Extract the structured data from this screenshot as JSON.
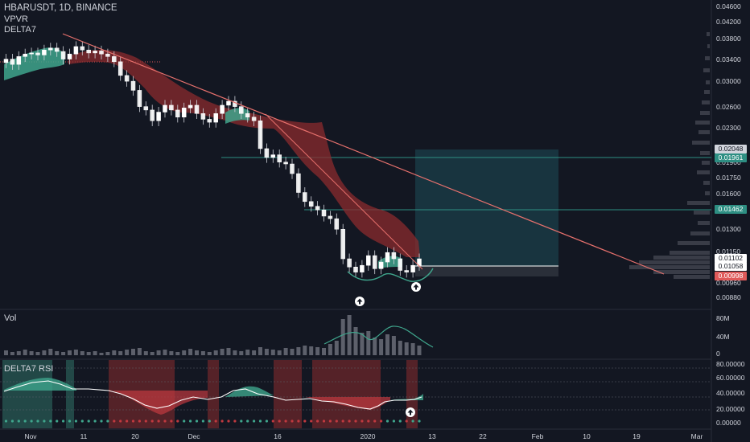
{
  "header": {
    "symbol": "HBARUSDT, 1D, BINANCE",
    "indicator1": "VPVR",
    "indicator2": "DELTA7"
  },
  "panes": {
    "volume_title": "Vol",
    "rsi_title": "DELTA7 RSI"
  },
  "colors": {
    "background": "#131722",
    "up": "#ffffff",
    "down": "#ffffff",
    "cloud_bear": "#8b2b2e",
    "cloud_bull": "#3fa58c",
    "trendline": "#e8716d",
    "level_green": "#2e8f83",
    "level_red": "#e05a5a",
    "rsi_band_red": "#8b2b2e",
    "rsi_line": "#ffffff"
  },
  "price_tags": [
    {
      "label": "0.02048",
      "bg": "#d1d4dc",
      "fg": "#131722",
      "price": 0.02048
    },
    {
      "label": "0.01961",
      "bg": "#2e8f83",
      "fg": "#ffffff",
      "price": 0.01961
    },
    {
      "label": "0.01462",
      "bg": "#2e8f83",
      "fg": "#ffffff",
      "price": 0.01462
    },
    {
      "label": "0.01102",
      "bg": "#ffffff",
      "fg": "#131722",
      "price": 0.01102
    },
    {
      "label": "0.01058",
      "bg": "#ffffff",
      "fg": "#131722",
      "price": 0.01058
    },
    {
      "label": "0.00998",
      "bg": "#e05a5a",
      "fg": "#ffffff",
      "price": 0.00998
    }
  ],
  "chart_data": {
    "type": "candlestick",
    "title": "HBARUSDT, 1D, BINANCE",
    "x_tick_labels": [
      "Nov",
      "11",
      "20",
      "Dec",
      "16",
      "2020",
      "13",
      "22",
      "Feb",
      "10",
      "19",
      "Mar"
    ],
    "y_tick_labels": [
      "0.04600",
      "0.04200",
      "0.03800",
      "0.03400",
      "0.03000",
      "0.02600",
      "0.02300",
      "0.01900",
      "0.01750",
      "0.01600",
      "0.01300",
      "0.01150",
      "0.00960",
      "0.00880"
    ],
    "volume_ticks": [
      "80M",
      "40M",
      "0"
    ],
    "rsi_ticks": [
      "80.00000",
      "60.00000",
      "40.00000",
      "20.00000",
      "0.00000"
    ],
    "candles_close": [
      0.034,
      0.033,
      0.0345,
      0.035,
      0.0352,
      0.0348,
      0.0358,
      0.0362,
      0.0355,
      0.034,
      0.035,
      0.0365,
      0.0358,
      0.0352,
      0.0356,
      0.035,
      0.0345,
      0.0335,
      0.031,
      0.03,
      0.0285,
      0.026,
      0.0255,
      0.024,
      0.0252,
      0.0262,
      0.0255,
      0.0245,
      0.0258,
      0.0262,
      0.025,
      0.0242,
      0.0238,
      0.025,
      0.0262,
      0.0268,
      0.026,
      0.025,
      0.0245,
      0.024,
      0.0205,
      0.0195,
      0.0198,
      0.019,
      0.0188,
      0.0178,
      0.016,
      0.0152,
      0.0148,
      0.0145,
      0.014,
      0.0138,
      0.013,
      0.011,
      0.0105,
      0.0102,
      0.0106,
      0.0112,
      0.0104,
      0.0108,
      0.0114,
      0.011,
      0.0103,
      0.0102,
      0.0106,
      0.011
    ]
  }
}
